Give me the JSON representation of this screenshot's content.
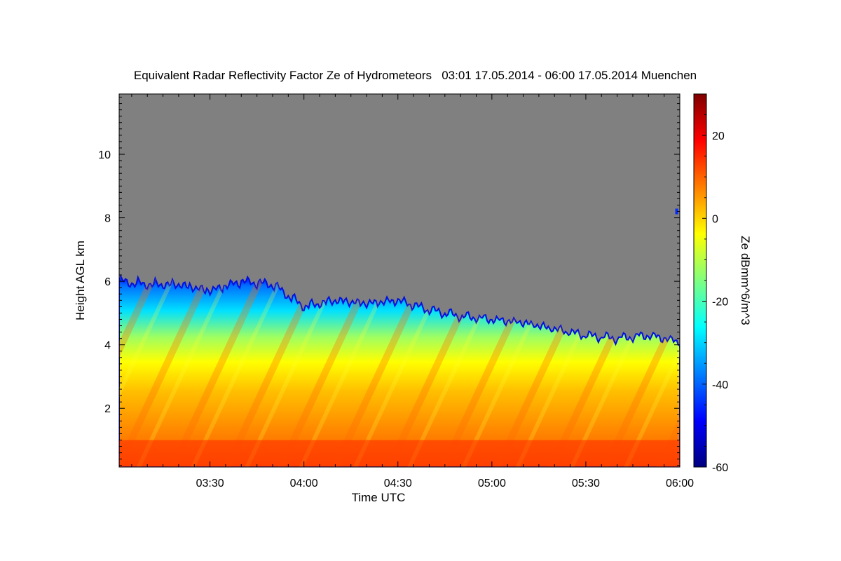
{
  "chart_data": {
    "type": "heatmap",
    "title": "Equivalent Radar Reflectivity Factor Ze of Hydrometeors   03:01 17.05.2014 - 06:00 17.05.2014 Muenchen",
    "xlabel": "Time UTC",
    "ylabel": "Height AGL km",
    "colorbar_label": "Ze dBmm^6/m^3",
    "xlim": [
      "03:01",
      "06:00"
    ],
    "ylim": [
      0.15,
      11.9
    ],
    "zlim": [
      -60,
      30
    ],
    "x_ticks": [
      "03:30",
      "04:00",
      "04:30",
      "05:00",
      "05:30",
      "06:00"
    ],
    "y_ticks": [
      2,
      4,
      6,
      8,
      10
    ],
    "colorbar_ticks": [
      -60,
      -40,
      -20,
      0,
      20
    ],
    "background_color": "#808080",
    "colormap": [
      "#00007f",
      "#0000ff",
      "#007fff",
      "#00ffff",
      "#7fff7f",
      "#ffff00",
      "#ff7f00",
      "#ff0000",
      "#7f0000"
    ],
    "cloud_top": {
      "time": [
        "03:01",
        "03:10",
        "03:20",
        "03:30",
        "03:40",
        "03:50",
        "04:00",
        "04:10",
        "04:20",
        "04:30",
        "04:40",
        "04:50",
        "05:00",
        "05:10",
        "05:20",
        "05:30",
        "05:40",
        "05:50",
        "06:00"
      ],
      "height_km": [
        6.0,
        5.9,
        5.9,
        5.7,
        6.0,
        5.9,
        5.2,
        5.4,
        5.3,
        5.4,
        5.1,
        4.9,
        4.8,
        4.7,
        4.5,
        4.3,
        4.2,
        4.3,
        4.1
      ]
    },
    "surface_layer": {
      "base_km": 0.15,
      "top_km": 1.0,
      "ze_dbz": 15
    },
    "isolated_echo": {
      "time": "05:59",
      "height_km": 8.2,
      "ze_dbz": -45
    }
  }
}
